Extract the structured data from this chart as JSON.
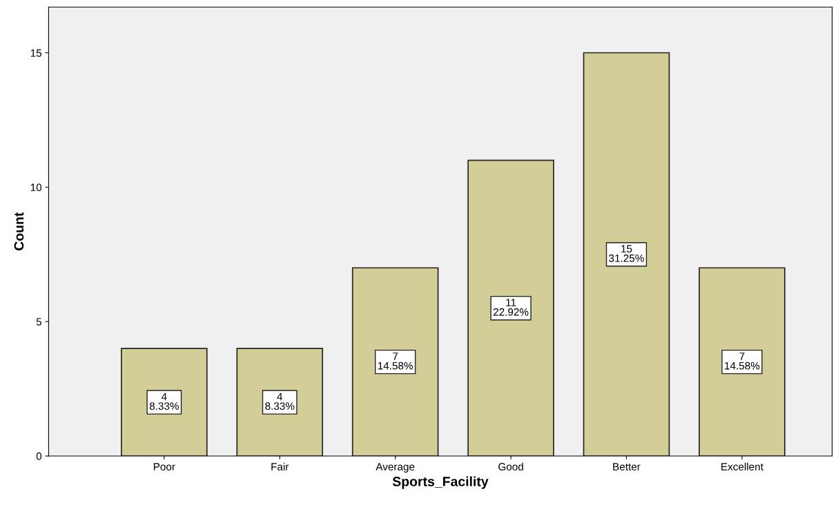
{
  "chart_data": {
    "type": "bar",
    "xlabel": "Sports_Facility",
    "ylabel": "Count",
    "categories": [
      "Poor",
      "Fair",
      "Average",
      "Good",
      "Better",
      "Excellent"
    ],
    "values": [
      4,
      4,
      7,
      11,
      15,
      7
    ],
    "value_labels": [
      "4\n8.33%",
      "4\n8.33%",
      "7\n14.58%",
      "11\n22.92%",
      "15\n31.25%",
      "7\n14.58%"
    ],
    "color": "#d3ce97",
    "ylim": [
      0,
      16.7
    ],
    "yticks": [
      0,
      5,
      10,
      15
    ],
    "grid": false,
    "legend": false
  }
}
